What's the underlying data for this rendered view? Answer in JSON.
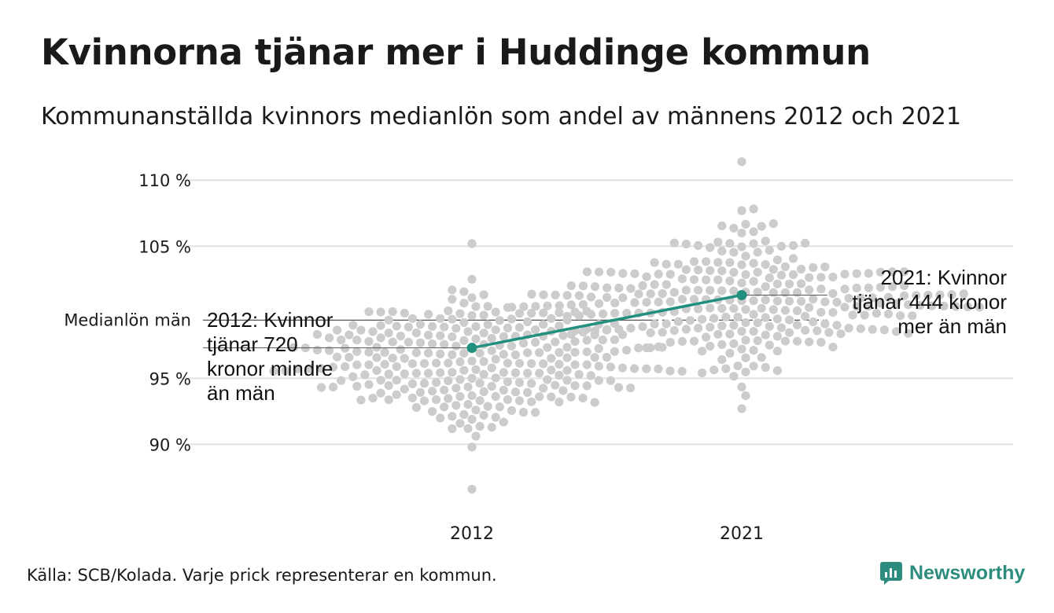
{
  "header": {
    "title": "Kvinnorna tjänar mer i Huddinge kommun",
    "subtitle": "Kommunanställda kvinnors medianlön som andel av männens 2012 och 2021"
  },
  "footer": {
    "source": "Källa: SCB/Kolada. Varje prick representerar en kommun.",
    "logo_text": "Newsworthy"
  },
  "chart_data": {
    "type": "scatter",
    "subtype": "beeswarm",
    "categories": [
      "2012",
      "2021"
    ],
    "ylim": [
      85.5,
      111.5
    ],
    "yticks": [
      90,
      95,
      105,
      110
    ],
    "ytick_labels": [
      "90 %",
      "95 %",
      "105 %",
      "110 %"
    ],
    "grid": true,
    "reference_line": {
      "value": 99.4,
      "label": "Medianlön män"
    },
    "highlight": {
      "name": "Huddinge",
      "values": [
        97.3,
        101.3
      ],
      "color": "#22907f"
    },
    "dot_color": "#cccccc",
    "annotations": [
      {
        "category": "2012",
        "lines": [
          "2012: Kvinnor",
          "tjänar 720",
          "kronor mindre",
          "än män"
        ]
      },
      {
        "category": "2021",
        "lines": [
          "2021: Kvinnor",
          "tjänar 444 kronor",
          "mer än män"
        ]
      }
    ],
    "distribution_summary": [
      {
        "category": "2012",
        "count": 290,
        "min": 86.6,
        "max": 105.2,
        "median": 96.3
      },
      {
        "category": "2021",
        "count": 290,
        "min": 92.7,
        "max": 111.4,
        "median": 100.9
      }
    ]
  }
}
